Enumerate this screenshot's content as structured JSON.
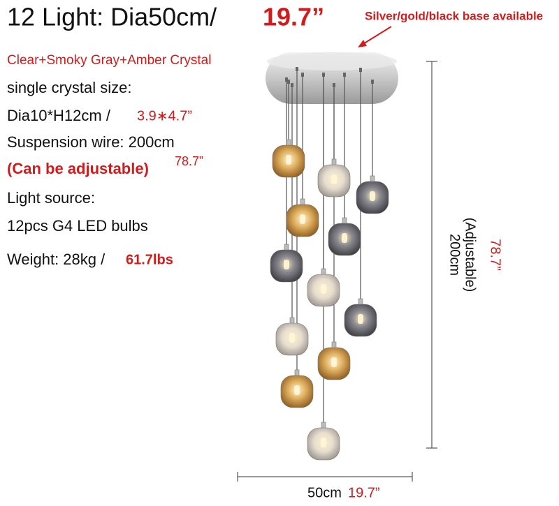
{
  "header": {
    "title": "12 Light: Dia50cm/",
    "title_inch": "19.7”",
    "base_note": "Silver/gold/black base available"
  },
  "specs": {
    "crystal": "Clear+Smoky Gray+Amber Crystal",
    "size_label": "single crystal size:",
    "size": "Dia10*H12cm /",
    "size_inch": "3.9∗4.7”",
    "wire": "Suspension wire: 200cm",
    "wire_note": "(Can be adjustable)",
    "wire_inch": "78.7”",
    "source_label": "Light source:",
    "source": "12pcs G4 LED bulbs",
    "weight": "Weight: 28kg /",
    "weight_lbs": "61.7lbs"
  },
  "dimensions": {
    "height": "200cm",
    "height_note": "(Adjustable)",
    "height_inch": "78.7”",
    "width": "50cm",
    "width_inch": "19.7”"
  }
}
